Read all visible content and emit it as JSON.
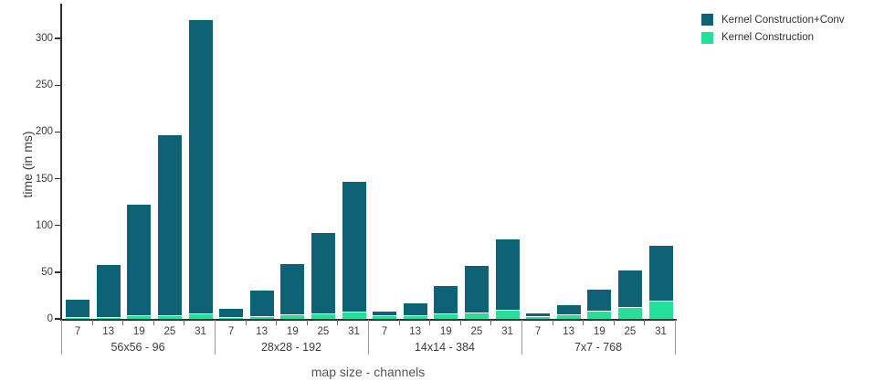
{
  "chart_data": {
    "type": "bar",
    "title": "",
    "xlabel": "map size - channels",
    "ylabel": "time (in ms)",
    "ylim": [
      0,
      330
    ],
    "yticks": [
      0,
      50,
      100,
      150,
      200,
      250,
      300
    ],
    "grid": false,
    "legend_position": "top-right-outside",
    "categories": [
      "7",
      "13",
      "19",
      "25",
      "31"
    ],
    "group_labels": [
      "56x56 - 96",
      "28x28 - 192",
      "14x14 - 384",
      "7x7 - 768"
    ],
    "series": [
      {
        "name": "Kernel Construction+Conv",
        "color": "#0d6375",
        "values": [
          [
            21,
            58,
            122,
            197,
            320
          ],
          [
            11,
            30,
            59,
            92,
            147
          ],
          [
            7.5,
            17,
            35,
            57,
            85
          ],
          [
            5.5,
            15,
            31,
            52,
            78.5
          ]
        ]
      },
      {
        "name": "Kernel Construction",
        "color": "#24e09a",
        "values": [
          [
            0.8,
            1.2,
            2.5,
            2.5,
            4.5
          ],
          [
            1,
            1.5,
            4,
            4.5,
            7
          ],
          [
            2.5,
            3,
            5,
            6,
            9
          ],
          [
            2,
            3.5,
            7.5,
            12,
            18.5
          ]
        ]
      }
    ]
  }
}
